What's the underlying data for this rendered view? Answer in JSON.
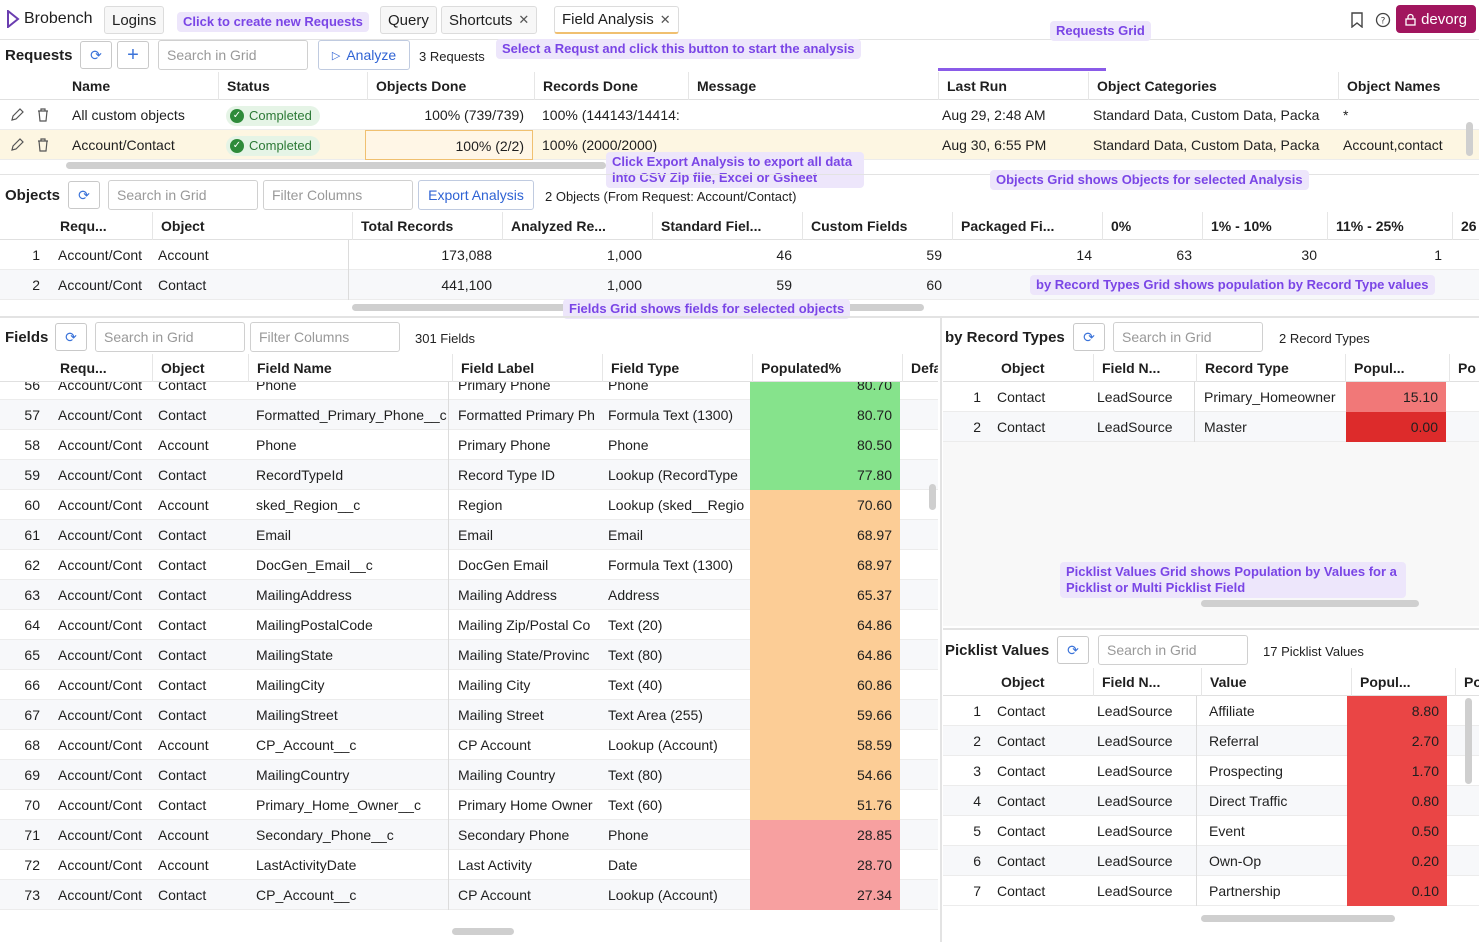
{
  "app": {
    "name": "Brobench",
    "org": "devorg"
  },
  "tabs": [
    {
      "label": "Logins"
    },
    {
      "label": "Query"
    },
    {
      "label": "Shortcuts"
    },
    {
      "label": "Field Analysis"
    }
  ],
  "callouts": {
    "new_req": "Click to create new Requests",
    "analyze": "Select a Requst and click this button to start the analysis",
    "req_grid": "Requests Grid",
    "export": "Click Export Analysis to export all data into CSV Zip file, Excel or Gsheet",
    "objects": "Objects Grid shows Objects for selected Analysis",
    "record_types": "by Record Types Grid shows population by Record Type values",
    "fields": "Fields Grid shows fields for selected objects",
    "picklist": "Picklist Values Grid shows Population by Values for a Picklist or Multi Picklist Field"
  },
  "requests": {
    "title": "Requests",
    "search_placeholder": "Search in Grid",
    "analyze_label": "Analyze",
    "count": "3 Requests",
    "columns": [
      "Name",
      "Status",
      "Objects Done",
      "Records Done",
      "Message",
      "Last Run",
      "Object Categories",
      "Object Names"
    ],
    "rows": [
      {
        "name": "All custom objects",
        "status": "Completed",
        "objects_done": "100% (739/739)",
        "records_done": "100% (144143/14414:",
        "message": "",
        "last_run": "Aug 29, 2:48 AM",
        "categories": "Standard Data, Custom Data, Packa",
        "names": "*"
      },
      {
        "name": "Account/Contact",
        "status": "Completed",
        "objects_done": "100% (2/2)",
        "records_done": "100% (2000/2000)",
        "message": "",
        "last_run": "Aug 30, 6:55 PM",
        "categories": "Standard Data, Custom Data, Packa",
        "names": "Account,contact"
      }
    ]
  },
  "objects": {
    "title": "Objects",
    "search_placeholder": "Search in Grid",
    "filter_placeholder": "Filter Columns",
    "export_label": "Export Analysis",
    "count": "2 Objects (From Request: Account/Contact)",
    "columns": [
      "Requ...",
      "Object",
      "Total Records",
      "Analyzed Re...",
      "Standard Fiel...",
      "Custom Fields",
      "Packaged Fi...",
      "0%",
      "1% - 10%",
      "11% - 25%",
      "26"
    ],
    "rows": [
      {
        "n": "1",
        "req": "Account/Cont",
        "obj": "Account",
        "total": "173,088",
        "analyzed": "1,000",
        "std": "46",
        "custom": "59",
        "pkg": "14",
        "p0": "63",
        "p1": "30",
        "p11": "1"
      },
      {
        "n": "2",
        "req": "Account/Cont",
        "obj": "Contact",
        "total": "441,100",
        "analyzed": "1,000",
        "std": "59",
        "custom": "60",
        "pkg": "",
        "p0": "",
        "p1": "",
        "p11": ""
      }
    ]
  },
  "fields": {
    "title": "Fields",
    "search_placeholder": "Search in Grid",
    "filter_placeholder": "Filter Columns",
    "count": "301 Fields",
    "columns": [
      "Requ...",
      "Object",
      "Field Name",
      "Field Label",
      "Field Type",
      "Populated%",
      "Defa"
    ],
    "rows": [
      {
        "n": "56",
        "req": "Account/Cont",
        "obj": "Contact",
        "name": "Phone",
        "label": "Primary Phone",
        "type": "Phone",
        "pop": "80.70",
        "band": "green"
      },
      {
        "n": "57",
        "req": "Account/Cont",
        "obj": "Contact",
        "name": "Formatted_Primary_Phone__c",
        "label": "Formatted Primary Ph",
        "type": "Formula Text (1300)",
        "pop": "80.70",
        "band": "green"
      },
      {
        "n": "58",
        "req": "Account/Cont",
        "obj": "Account",
        "name": "Phone",
        "label": "Primary Phone",
        "type": "Phone",
        "pop": "80.50",
        "band": "green"
      },
      {
        "n": "59",
        "req": "Account/Cont",
        "obj": "Contact",
        "name": "RecordTypeId",
        "label": "Record Type ID",
        "type": "Lookup (RecordType",
        "pop": "77.80",
        "band": "green"
      },
      {
        "n": "60",
        "req": "Account/Cont",
        "obj": "Account",
        "name": "sked_Region__c",
        "label": "Region",
        "type": "Lookup (sked__Regio",
        "pop": "70.60",
        "band": "orange"
      },
      {
        "n": "61",
        "req": "Account/Cont",
        "obj": "Contact",
        "name": "Email",
        "label": "Email",
        "type": "Email",
        "pop": "68.97",
        "band": "orange"
      },
      {
        "n": "62",
        "req": "Account/Cont",
        "obj": "Contact",
        "name": "DocGen_Email__c",
        "label": "DocGen Email",
        "type": "Formula Text (1300)",
        "pop": "68.97",
        "band": "orange"
      },
      {
        "n": "63",
        "req": "Account/Cont",
        "obj": "Contact",
        "name": "MailingAddress",
        "label": "Mailing Address",
        "type": "Address",
        "pop": "65.37",
        "band": "orange"
      },
      {
        "n": "64",
        "req": "Account/Cont",
        "obj": "Contact",
        "name": "MailingPostalCode",
        "label": "Mailing Zip/Postal Co",
        "type": "Text (20)",
        "pop": "64.86",
        "band": "orange"
      },
      {
        "n": "65",
        "req": "Account/Cont",
        "obj": "Contact",
        "name": "MailingState",
        "label": "Mailing State/Provinc",
        "type": "Text (80)",
        "pop": "64.86",
        "band": "orange"
      },
      {
        "n": "66",
        "req": "Account/Cont",
        "obj": "Contact",
        "name": "MailingCity",
        "label": "Mailing City",
        "type": "Text (40)",
        "pop": "60.86",
        "band": "orange"
      },
      {
        "n": "67",
        "req": "Account/Cont",
        "obj": "Contact",
        "name": "MailingStreet",
        "label": "Mailing Street",
        "type": "Text Area (255)",
        "pop": "59.66",
        "band": "orange"
      },
      {
        "n": "68",
        "req": "Account/Cont",
        "obj": "Account",
        "name": "CP_Account__c",
        "label": "CP Account",
        "type": "Lookup (Account)",
        "pop": "58.59",
        "band": "orange"
      },
      {
        "n": "69",
        "req": "Account/Cont",
        "obj": "Contact",
        "name": "MailingCountry",
        "label": "Mailing Country",
        "type": "Text (80)",
        "pop": "54.66",
        "band": "orange"
      },
      {
        "n": "70",
        "req": "Account/Cont",
        "obj": "Contact",
        "name": "Primary_Home_Owner__c",
        "label": "Primary Home Owner",
        "type": "Text (60)",
        "pop": "51.76",
        "band": "orange"
      },
      {
        "n": "71",
        "req": "Account/Cont",
        "obj": "Account",
        "name": "Secondary_Phone__c",
        "label": "Secondary Phone",
        "type": "Phone",
        "pop": "28.85",
        "band": "red"
      },
      {
        "n": "72",
        "req": "Account/Cont",
        "obj": "Account",
        "name": "LastActivityDate",
        "label": "Last Activity",
        "type": "Date",
        "pop": "28.70",
        "band": "red"
      },
      {
        "n": "73",
        "req": "Account/Cont",
        "obj": "Contact",
        "name": "CP_Account__c",
        "label": "CP Account",
        "type": "Lookup (Account)",
        "pop": "27.34",
        "band": "red"
      }
    ]
  },
  "record_types": {
    "title": "by Record Types",
    "search_placeholder": "Search in Grid",
    "count": "2 Record Types",
    "columns": [
      "Object",
      "Field N...",
      "Record Type",
      "Popul...",
      "Po"
    ],
    "rows": [
      {
        "n": "1",
        "obj": "Contact",
        "field": "LeadSource",
        "rt": "Primary_Homeowner",
        "pop": "15.10",
        "color": "#f17878"
      },
      {
        "n": "2",
        "obj": "Contact",
        "field": "LeadSource",
        "rt": "Master",
        "pop": "0.00",
        "color": "#dd2b2b"
      }
    ]
  },
  "picklist": {
    "title": "Picklist Values",
    "search_placeholder": "Search in Grid",
    "count": "17 Picklist Values",
    "columns": [
      "Object",
      "Field N...",
      "Value",
      "Popul...",
      "Po"
    ],
    "rows": [
      {
        "n": "1",
        "obj": "Contact",
        "field": "LeadSource",
        "value": "Affiliate",
        "pop": "8.80"
      },
      {
        "n": "2",
        "obj": "Contact",
        "field": "LeadSource",
        "value": "Referral",
        "pop": "2.70"
      },
      {
        "n": "3",
        "obj": "Contact",
        "field": "LeadSource",
        "value": "Prospecting",
        "pop": "1.70"
      },
      {
        "n": "4",
        "obj": "Contact",
        "field": "LeadSource",
        "value": "Direct Traffic",
        "pop": "0.80"
      },
      {
        "n": "5",
        "obj": "Contact",
        "field": "LeadSource",
        "value": "Event",
        "pop": "0.50"
      },
      {
        "n": "6",
        "obj": "Contact",
        "field": "LeadSource",
        "value": "Own-Op",
        "pop": "0.20"
      },
      {
        "n": "7",
        "obj": "Contact",
        "field": "LeadSource",
        "value": "Partnership",
        "pop": "0.10"
      }
    ]
  },
  "colors": {
    "green": "#86e38c",
    "orange": "#fccd96",
    "red": "#f7a0a0",
    "pick_red": "#ea4545",
    "accent": "#7a45e6",
    "org": "#a1155e"
  }
}
